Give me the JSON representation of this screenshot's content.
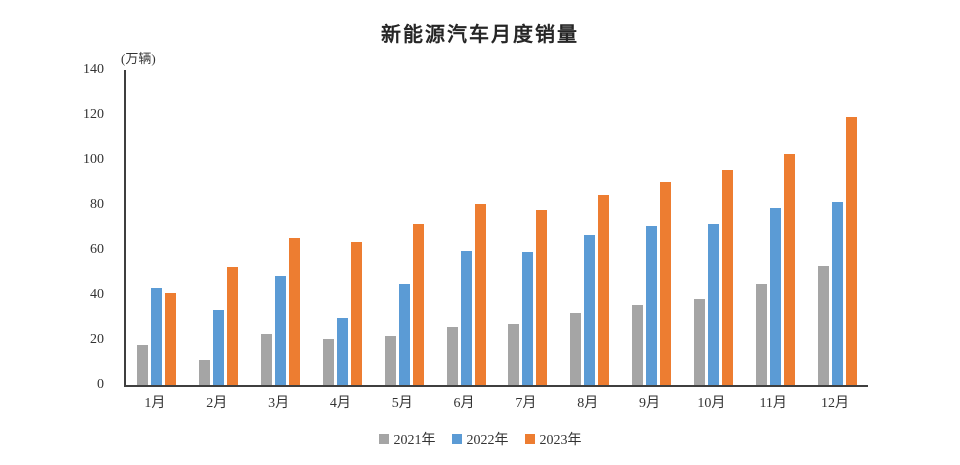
{
  "page": {
    "background": "#ffffff",
    "axis_color": "#3f3f3f",
    "text_color": "#333333"
  },
  "chart_data": {
    "type": "bar",
    "title": "新能源汽车月度销量",
    "unit_label": "(万辆)",
    "xlabel": "",
    "ylabel": "万辆",
    "categories": [
      "1月",
      "2月",
      "3月",
      "4月",
      "5月",
      "6月",
      "7月",
      "8月",
      "9月",
      "10月",
      "11月",
      "12月"
    ],
    "series": [
      {
        "name": "2021年",
        "color": "#A5A5A5",
        "values": [
          17.9,
          11.0,
          22.6,
          20.6,
          21.7,
          25.6,
          27.1,
          32.1,
          35.7,
          38.3,
          45.0,
          53.1
        ]
      },
      {
        "name": "2022年",
        "color": "#5B9BD5",
        "values": [
          43.1,
          33.4,
          48.4,
          29.9,
          44.7,
          59.6,
          59.3,
          66.6,
          70.8,
          71.4,
          78.6,
          81.4
        ]
      },
      {
        "name": "2023年",
        "color": "#ED7D31",
        "values": [
          40.8,
          52.5,
          65.3,
          63.6,
          71.7,
          80.6,
          78.0,
          84.6,
          90.4,
          95.6,
          102.6,
          119.1
        ]
      }
    ],
    "ylim": [
      0,
      140
    ],
    "yticks": [
      0,
      20,
      40,
      60,
      80,
      100,
      120,
      140
    ],
    "grid": false,
    "legend_position": "bottom"
  }
}
